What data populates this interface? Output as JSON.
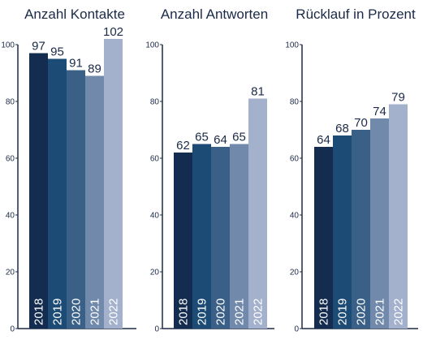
{
  "colors": {
    "text": "#1b2a47",
    "axis": "#1b2a47",
    "year_label": "#ffffff",
    "bars": [
      "#132c4f",
      "#1c4b75",
      "#3a6088",
      "#7189ab",
      "#a4b1cd"
    ]
  },
  "chart_data": [
    {
      "type": "bar",
      "title": "Anzahl Kontakte",
      "categories": [
        "2018",
        "2019",
        "2020",
        "2021",
        "2022"
      ],
      "values": [
        97,
        95,
        91,
        89,
        102
      ],
      "ylim": [
        0,
        100
      ],
      "yticks": [
        0,
        20,
        40,
        60,
        80,
        100
      ],
      "xlabel": "",
      "ylabel": "",
      "grid": false,
      "legend": "none"
    },
    {
      "type": "bar",
      "title": "Anzahl Antworten",
      "categories": [
        "2018",
        "2019",
        "2020",
        "2021",
        "2022"
      ],
      "values": [
        62,
        65,
        64,
        65,
        81
      ],
      "ylim": [
        0,
        100
      ],
      "yticks": [
        0,
        20,
        40,
        60,
        80,
        100
      ],
      "xlabel": "",
      "ylabel": "",
      "grid": false,
      "legend": "none"
    },
    {
      "type": "bar",
      "title": "Rücklauf in Prozent",
      "categories": [
        "2018",
        "2019",
        "2020",
        "2021",
        "2022"
      ],
      "values": [
        64,
        68,
        70,
        74,
        79
      ],
      "ylim": [
        0,
        100
      ],
      "yticks": [
        0,
        20,
        40,
        60,
        80,
        100
      ],
      "xlabel": "",
      "ylabel": "",
      "grid": false,
      "legend": "none"
    }
  ]
}
